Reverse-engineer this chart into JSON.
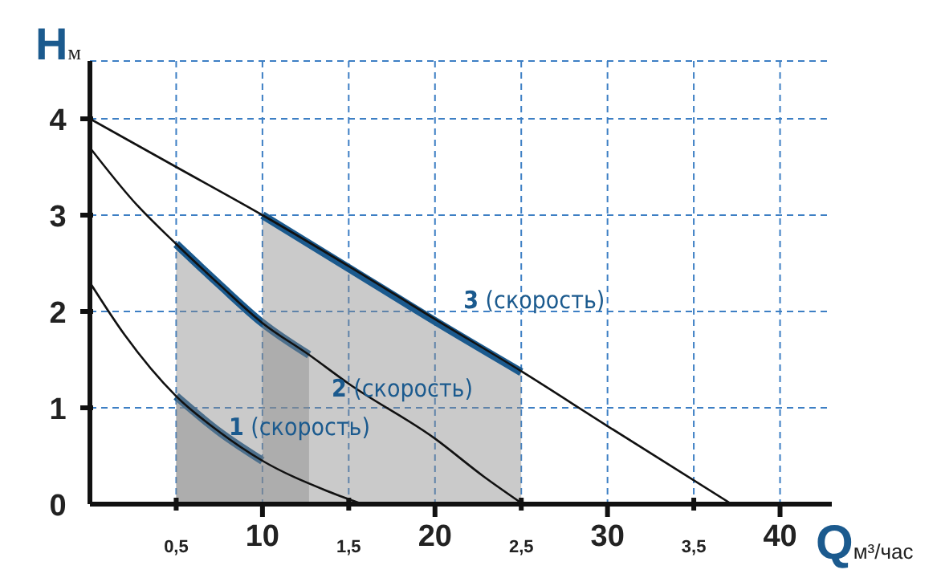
{
  "chart_data": {
    "type": "line",
    "xlabel": "Qм³/час",
    "ylabel": "Hм",
    "xlim": [
      0,
      4.3
    ],
    "ylim": [
      0,
      4.6
    ],
    "xticks": [
      {
        "value": 0.5,
        "label": "0,5"
      },
      {
        "value": 1.5,
        "label": "1,5"
      },
      {
        "value": 2.5,
        "label": "2,5"
      },
      {
        "value": 3.5,
        "label": "3,5"
      }
    ],
    "x2lim": [
      0,
      43
    ],
    "x2ticks": [
      10,
      20,
      30,
      40
    ],
    "yticks": [
      0,
      1,
      2,
      3,
      4
    ],
    "grid": true,
    "line_style": "solid",
    "marker": "none",
    "series": [
      {
        "color": "#111111",
        "x": [
          0,
          0.5,
          1,
          1.5,
          2,
          2.5,
          3,
          3.72
        ],
        "values": [
          4,
          3.5,
          3,
          2.47,
          1.92,
          1.38,
          0.81,
          0
        ]
      },
      {
        "color": "#111111",
        "x": [
          0,
          0.25,
          0.5,
          0.75,
          1,
          1.27,
          1.5,
          2,
          2.28,
          2.51
        ],
        "values": [
          3.7,
          3.15,
          2.7,
          2.28,
          1.88,
          1.55,
          1.25,
          0.68,
          0.29,
          0
        ]
      },
      {
        "color": "#111111",
        "x": [
          0,
          0.2,
          0.5,
          0.75,
          1,
          1.37,
          1.58
        ],
        "values": [
          2.3,
          1.76,
          1.12,
          0.75,
          0.45,
          0.14,
          0
        ]
      },
      {
        "type": "area",
        "name": "1 (скорость)",
        "color": "#1b5a8e",
        "x": [
          0.5,
          0.75,
          1
        ],
        "values": [
          1.12,
          0.75,
          0.45
        ]
      },
      {
        "type": "area",
        "name": "2 (скорость)",
        "color": "#1b5a8e",
        "x": [
          0.5,
          0.75,
          1,
          1.27
        ],
        "values": [
          2.7,
          2.28,
          1.88,
          1.55
        ]
      },
      {
        "type": "area",
        "name": "3 (скорость)",
        "color": "#1b5a8e",
        "x": [
          1,
          1.5,
          2,
          2.5
        ],
        "values": [
          3,
          2.45,
          1.9,
          1.37
        ]
      }
    ]
  }
}
